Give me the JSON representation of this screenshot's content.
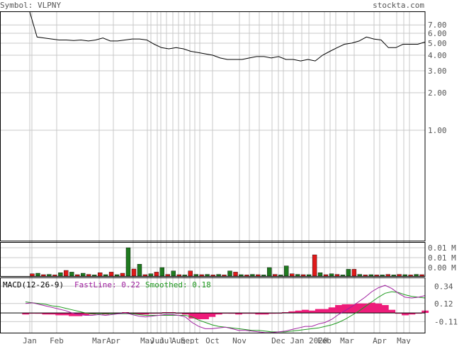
{
  "header": {
    "symbol_text": "Symbol: VLPNY",
    "site": "stockta.com"
  },
  "colors": {
    "frame": "#000000",
    "grid": "#c8c8c8",
    "price_line": "#000000",
    "volume_up": "#1f7a1f",
    "volume_down": "#e01a1a",
    "macd_fast": "#a020a0",
    "macd_smoothed": "#1f9a1f",
    "macd_histogram": "#ee1c7a",
    "label_gray": "#555555",
    "label_fast": "#a020a0",
    "label_smoothed": "#1f9a1f"
  },
  "chart_data": {
    "type": "line",
    "x_tick_labels": [
      "Jan",
      "Feb",
      "Mar",
      "Apr",
      "May",
      "Jun",
      "Jul",
      "Aug",
      "Sept",
      "Oct",
      "Nov",
      "Dec",
      "Jan 2020",
      "Feb",
      "Mar",
      "Apr",
      "May"
    ],
    "price_panel": {
      "y_scale": "log",
      "y_tick_labels": [
        "7.00",
        "6.00",
        "5.00",
        "4.00",
        "3.00",
        "2.00",
        "1.00"
      ],
      "y_tick_values": [
        7,
        6,
        5,
        4,
        3,
        2,
        1
      ],
      "y_range": [
        0.13,
        9.0
      ],
      "price": [
        8.9,
        5.6,
        5.5,
        5.4,
        5.3,
        5.3,
        5.25,
        5.3,
        5.2,
        5.3,
        5.5,
        5.2,
        5.2,
        5.3,
        5.4,
        5.4,
        5.3,
        4.9,
        4.6,
        4.5,
        4.6,
        4.5,
        4.3,
        4.2,
        4.1,
        4.0,
        3.8,
        3.7,
        3.7,
        3.7,
        3.8,
        3.9,
        3.9,
        3.8,
        3.9,
        3.7,
        3.7,
        3.6,
        3.7,
        3.6,
        4.0,
        4.3,
        4.6,
        4.9,
        5.0,
        5.2,
        5.6,
        5.4,
        5.3,
        4.6,
        4.6,
        4.9,
        4.9,
        4.9,
        5.1
      ]
    },
    "volume_panel": {
      "y_tick_labels": [
        "0.01 M",
        "0.01 M",
        "0.00 M"
      ],
      "bars": [
        {
          "v": 0.08,
          "up": false
        },
        {
          "v": 0.1,
          "up": true
        },
        {
          "v": 0.05,
          "up": false
        },
        {
          "v": 0.06,
          "up": true
        },
        {
          "v": 0.04,
          "up": false
        },
        {
          "v": 0.12,
          "up": true
        },
        {
          "v": 0.2,
          "up": false
        },
        {
          "v": 0.14,
          "up": true
        },
        {
          "v": 0.05,
          "up": false
        },
        {
          "v": 0.1,
          "up": true
        },
        {
          "v": 0.06,
          "up": false
        },
        {
          "v": 0.04,
          "up": true
        },
        {
          "v": 0.12,
          "up": false
        },
        {
          "v": 0.05,
          "up": true
        },
        {
          "v": 0.14,
          "up": false
        },
        {
          "v": 0.05,
          "up": true
        },
        {
          "v": 0.1,
          "up": false
        },
        {
          "v": 1.0,
          "up": true
        },
        {
          "v": 0.25,
          "up": false
        },
        {
          "v": 0.42,
          "up": true
        },
        {
          "v": 0.05,
          "up": false
        },
        {
          "v": 0.08,
          "up": true
        },
        {
          "v": 0.14,
          "up": false
        },
        {
          "v": 0.3,
          "up": true
        },
        {
          "v": 0.06,
          "up": false
        },
        {
          "v": 0.18,
          "up": true
        },
        {
          "v": 0.05,
          "up": false
        },
        {
          "v": 0.04,
          "up": true
        },
        {
          "v": 0.18,
          "up": false
        },
        {
          "v": 0.06,
          "up": true
        },
        {
          "v": 0.05,
          "up": false
        },
        {
          "v": 0.06,
          "up": true
        },
        {
          "v": 0.04,
          "up": false
        },
        {
          "v": 0.06,
          "up": true
        },
        {
          "v": 0.04,
          "up": false
        },
        {
          "v": 0.18,
          "up": true
        },
        {
          "v": 0.14,
          "up": false
        },
        {
          "v": 0.05,
          "up": true
        },
        {
          "v": 0.04,
          "up": false
        },
        {
          "v": 0.06,
          "up": true
        },
        {
          "v": 0.05,
          "up": false
        },
        {
          "v": 0.04,
          "up": true
        },
        {
          "v": 0.3,
          "up": true
        },
        {
          "v": 0.06,
          "up": false
        },
        {
          "v": 0.04,
          "up": true
        },
        {
          "v": 0.36,
          "up": true
        },
        {
          "v": 0.08,
          "up": false
        },
        {
          "v": 0.06,
          "up": true
        },
        {
          "v": 0.05,
          "up": false
        },
        {
          "v": 0.05,
          "up": true
        },
        {
          "v": 0.75,
          "up": false
        },
        {
          "v": 0.12,
          "up": true
        },
        {
          "v": 0.05,
          "up": false
        },
        {
          "v": 0.08,
          "up": true
        },
        {
          "v": 0.06,
          "up": false
        },
        {
          "v": 0.04,
          "up": true
        },
        {
          "v": 0.24,
          "up": true
        },
        {
          "v": 0.24,
          "up": false
        },
        {
          "v": 0.06,
          "up": true
        },
        {
          "v": 0.04,
          "up": false
        },
        {
          "v": 0.05,
          "up": true
        },
        {
          "v": 0.04,
          "up": false
        },
        {
          "v": 0.04,
          "up": true
        },
        {
          "v": 0.06,
          "up": false
        },
        {
          "v": 0.04,
          "up": true
        },
        {
          "v": 0.06,
          "up": false
        },
        {
          "v": 0.05,
          "up": true
        },
        {
          "v": 0.04,
          "up": false
        },
        {
          "v": 0.06,
          "up": true
        },
        {
          "v": 0.05,
          "up": false
        }
      ]
    },
    "macd_panel": {
      "title": "MACD(12-26-9)",
      "fast_label": "FastLine: 0.22",
      "smoothed_label": "Smoothed: 0.18",
      "y_tick_labels": [
        "0.34",
        "0.12",
        "-0.11"
      ],
      "y_tick_values": [
        0.34,
        0.12,
        -0.11
      ],
      "y_range": [
        -0.25,
        0.45
      ],
      "fast": [
        0.12,
        0.13,
        0.11,
        0.09,
        0.07,
        0.05,
        0.03,
        0.0,
        -0.02,
        -0.03,
        -0.03,
        -0.02,
        -0.03,
        -0.02,
        -0.01,
        0.0,
        -0.02,
        -0.04,
        -0.05,
        -0.04,
        -0.03,
        -0.02,
        -0.02,
        -0.03,
        -0.05,
        -0.12,
        -0.17,
        -0.2,
        -0.2,
        -0.19,
        -0.18,
        -0.2,
        -0.22,
        -0.22,
        -0.23,
        -0.24,
        -0.25,
        -0.25,
        -0.24,
        -0.23,
        -0.21,
        -0.19,
        -0.17,
        -0.17,
        -0.14,
        -0.12,
        -0.08,
        -0.02,
        0.03,
        0.08,
        0.14,
        0.2,
        0.27,
        0.32,
        0.35,
        0.31,
        0.25,
        0.2,
        0.19,
        0.2,
        0.22
      ],
      "smoothed": [
        0.14,
        0.13,
        0.12,
        0.11,
        0.09,
        0.08,
        0.06,
        0.04,
        0.02,
        0.0,
        -0.01,
        -0.01,
        -0.01,
        -0.01,
        -0.01,
        -0.01,
        -0.01,
        -0.02,
        -0.03,
        -0.03,
        -0.03,
        -0.03,
        -0.03,
        -0.03,
        -0.03,
        -0.05,
        -0.09,
        -0.12,
        -0.15,
        -0.17,
        -0.18,
        -0.19,
        -0.2,
        -0.21,
        -0.22,
        -0.22,
        -0.23,
        -0.24,
        -0.24,
        -0.24,
        -0.23,
        -0.22,
        -0.21,
        -0.2,
        -0.19,
        -0.17,
        -0.15,
        -0.12,
        -0.08,
        -0.03,
        0.02,
        0.08,
        0.14,
        0.2,
        0.25,
        0.27,
        0.26,
        0.23,
        0.21,
        0.2,
        0.19
      ],
      "histogram": [
        -0.02,
        0.0,
        -0.01,
        -0.02,
        -0.02,
        -0.03,
        -0.03,
        -0.04,
        -0.04,
        -0.03,
        -0.02,
        -0.01,
        -0.02,
        -0.01,
        0.0,
        0.01,
        -0.01,
        -0.02,
        -0.02,
        -0.01,
        0.0,
        0.01,
        0.01,
        0.0,
        -0.02,
        -0.07,
        -0.08,
        -0.08,
        -0.05,
        -0.02,
        0.0,
        -0.01,
        -0.02,
        -0.01,
        -0.01,
        -0.02,
        -0.02,
        -0.01,
        0.0,
        0.01,
        0.02,
        0.03,
        0.04,
        0.03,
        0.05,
        0.05,
        0.07,
        0.1,
        0.11,
        0.11,
        0.12,
        0.12,
        0.13,
        0.12,
        0.1,
        0.04,
        -0.01,
        -0.03,
        -0.02,
        0.0,
        0.03
      ]
    }
  }
}
